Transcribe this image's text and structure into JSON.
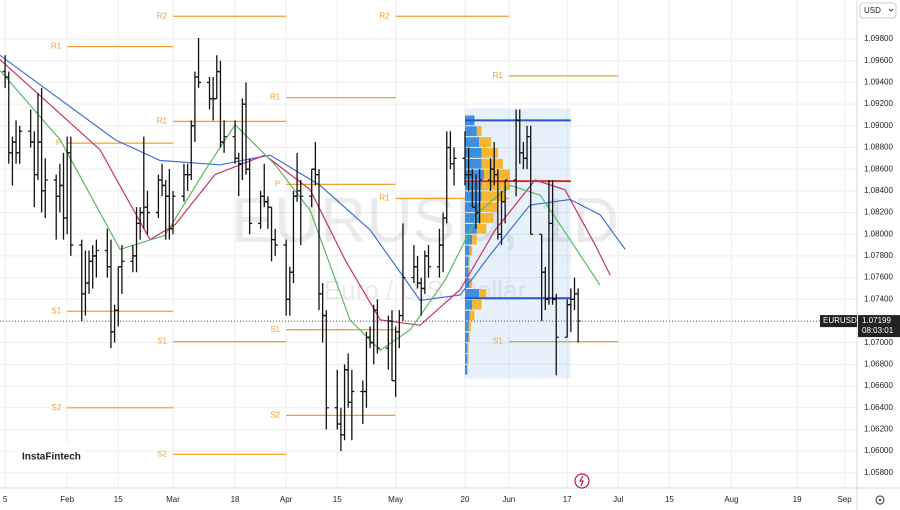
{
  "chart_data": {
    "type": "ohlc",
    "symbol_title": "EURUSD, 1D",
    "symbol_description": "Euro / U.S. Dollar",
    "currency": "USD",
    "brand": "InstaFintech",
    "last_price": {
      "symbol": "EURUSD",
      "value": 1.07199,
      "countdown": "08:03:01"
    },
    "xlim": [
      12.6,
      247.4
    ],
    "ylim": [
      1.0566,
      1.1016
    ],
    "xticks": [
      {
        "value": 14,
        "label": "5"
      },
      {
        "value": 31,
        "label": "Feb"
      },
      {
        "value": 45,
        "label": "15"
      },
      {
        "value": 60,
        "label": "Mar"
      },
      {
        "value": 77,
        "label": "18"
      },
      {
        "value": 91,
        "label": "Apr"
      },
      {
        "value": 105,
        "label": "15"
      },
      {
        "value": 121,
        "label": "May"
      },
      {
        "value": 140,
        "label": "20"
      },
      {
        "value": 152,
        "label": "Jun"
      },
      {
        "value": 168,
        "label": "17"
      },
      {
        "value": 182,
        "label": "Jul"
      },
      {
        "value": 196,
        "label": "15"
      },
      {
        "value": 213,
        "label": "Aug"
      },
      {
        "value": 231,
        "label": "19"
      },
      {
        "value": 244,
        "label": "Sep"
      }
    ],
    "yticks": [
      {
        "value": 1.058,
        "label": "1.05800"
      },
      {
        "value": 1.06,
        "label": "1.06000"
      },
      {
        "value": 1.062,
        "label": "1.06200"
      },
      {
        "value": 1.064,
        "label": "1.06400"
      },
      {
        "value": 1.066,
        "label": "1.06600"
      },
      {
        "value": 1.068,
        "label": "1.06800"
      },
      {
        "value": 1.07,
        "label": "1.07000"
      },
      {
        "value": 1.072,
        "label": "1.07200"
      },
      {
        "value": 1.074,
        "label": "1.07400"
      },
      {
        "value": 1.076,
        "label": "1.07600"
      },
      {
        "value": 1.078,
        "label": "1.07800"
      },
      {
        "value": 1.08,
        "label": "1.08000"
      },
      {
        "value": 1.082,
        "label": "1.08200"
      },
      {
        "value": 1.084,
        "label": "1.08400"
      },
      {
        "value": 1.086,
        "label": "1.08600"
      },
      {
        "value": 1.088,
        "label": "1.08800"
      },
      {
        "value": 1.09,
        "label": "1.09000"
      },
      {
        "value": 1.092,
        "label": "1.09200"
      },
      {
        "value": 1.094,
        "label": "1.09400"
      },
      {
        "value": 1.096,
        "label": "1.09600"
      },
      {
        "value": 1.098,
        "label": "1.09800"
      }
    ],
    "grid": true,
    "bar_color": "#111111",
    "x": [
      14,
      15,
      16,
      17,
      18,
      21,
      22,
      23,
      24,
      25,
      28,
      29,
      30,
      31,
      32,
      35,
      36,
      37,
      38,
      39,
      42,
      43,
      44,
      45,
      46,
      49,
      50,
      51,
      52,
      53,
      56,
      57,
      58,
      59,
      60,
      63,
      64,
      65,
      66,
      67,
      70,
      71,
      72,
      73,
      74,
      77,
      78,
      79,
      80,
      81,
      84,
      85,
      86,
      87,
      88,
      91,
      92,
      93,
      94,
      95,
      98,
      99,
      100,
      101,
      102,
      105,
      106,
      107,
      108,
      109,
      112,
      113,
      114,
      115,
      116,
      119,
      120,
      121,
      122,
      123,
      126,
      127,
      128,
      129,
      130,
      133,
      134,
      135,
      136,
      137,
      140,
      141,
      142,
      143,
      144,
      147,
      148,
      149,
      150,
      151,
      154,
      155,
      156,
      157,
      158,
      161,
      162,
      163,
      164,
      165,
      168,
      169,
      170,
      171
    ],
    "ohlc": [
      [
        1.095,
        1.0965,
        1.0935,
        1.0945
      ],
      [
        1.0945,
        1.095,
        1.0865,
        1.0875
      ],
      [
        1.0875,
        1.089,
        1.0845,
        1.0885
      ],
      [
        1.0885,
        1.0905,
        1.0865,
        1.0875
      ],
      [
        1.0875,
        1.09,
        1.0865,
        1.0895
      ],
      [
        1.0895,
        1.0915,
        1.088,
        1.0885
      ],
      [
        1.0885,
        1.0895,
        1.0825,
        1.0855
      ],
      [
        1.0855,
        1.093,
        1.085,
        1.0885
      ],
      [
        1.0885,
        1.0935,
        1.082,
        1.084
      ],
      [
        1.084,
        1.087,
        1.0815,
        1.085
      ],
      [
        1.085,
        1.0855,
        1.0795,
        1.0835
      ],
      [
        1.0835,
        1.0865,
        1.082,
        1.0845
      ],
      [
        1.0845,
        1.0875,
        1.0795,
        1.0815
      ],
      [
        1.0815,
        1.089,
        1.08,
        1.0875
      ],
      [
        1.0875,
        1.089,
        1.078,
        1.079
      ],
      [
        1.079,
        1.0795,
        1.072,
        1.0745
      ],
      [
        1.0745,
        1.0785,
        1.0725,
        1.0755
      ],
      [
        1.0755,
        1.0785,
        1.0745,
        1.0775
      ],
      [
        1.0775,
        1.079,
        1.075,
        1.078
      ],
      [
        1.078,
        1.0795,
        1.076,
        1.0785
      ],
      [
        1.0785,
        1.0805,
        1.076,
        1.077
      ],
      [
        1.077,
        1.0795,
        1.0695,
        1.071
      ],
      [
        1.071,
        1.0735,
        1.07,
        1.073
      ],
      [
        1.073,
        1.077,
        1.0715,
        1.077
      ],
      [
        1.077,
        1.079,
        1.0745,
        1.0775
      ],
      [
        1.0775,
        1.079,
        1.0765,
        1.078
      ],
      [
        1.078,
        1.0825,
        1.0765,
        1.081
      ],
      [
        1.081,
        1.0825,
        1.0795,
        1.082
      ],
      [
        1.082,
        1.089,
        1.0805,
        1.0825
      ],
      [
        1.0825,
        1.084,
        1.08,
        1.082
      ],
      [
        1.082,
        1.0855,
        1.0815,
        1.085
      ],
      [
        1.085,
        1.0865,
        1.0835,
        1.0845
      ],
      [
        1.0845,
        1.085,
        1.0795,
        1.0835
      ],
      [
        1.0835,
        1.086,
        1.0795,
        1.0805
      ],
      [
        1.0805,
        1.084,
        1.08,
        1.0835
      ],
      [
        1.0835,
        1.0865,
        1.083,
        1.0855
      ],
      [
        1.0855,
        1.0865,
        1.084,
        1.0855
      ],
      [
        1.0855,
        1.0905,
        1.085,
        1.09
      ],
      [
        1.09,
        1.095,
        1.0885,
        1.0945
      ],
      [
        1.0945,
        1.0981,
        1.0935,
        1.094
      ],
      [
        1.094,
        1.0945,
        1.0915,
        1.0925
      ],
      [
        1.0925,
        1.0945,
        1.0905,
        1.0925
      ],
      [
        1.0925,
        1.0965,
        1.0925,
        1.095
      ],
      [
        1.095,
        1.096,
        1.088,
        1.0885
      ],
      [
        1.0885,
        1.0905,
        1.0875,
        1.089
      ],
      [
        1.089,
        1.0905,
        1.0865,
        1.087
      ],
      [
        1.087,
        1.0875,
        1.0835,
        1.0865
      ],
      [
        1.0865,
        1.0925,
        1.085,
        1.092
      ],
      [
        1.092,
        1.094,
        1.0855,
        1.086
      ],
      [
        1.086,
        1.087,
        1.08,
        1.081
      ],
      [
        1.081,
        1.084,
        1.0805,
        1.0835
      ],
      [
        1.0835,
        1.0865,
        1.0825,
        1.083
      ],
      [
        1.083,
        1.0835,
        1.0805,
        1.0825
      ],
      [
        1.0825,
        1.0825,
        1.0775,
        1.0795
      ],
      [
        1.0795,
        1.0805,
        1.078,
        1.079
      ],
      [
        1.079,
        1.0795,
        1.0725,
        1.074
      ],
      [
        1.074,
        1.077,
        1.0725,
        1.0765
      ],
      [
        1.0765,
        1.084,
        1.0755,
        1.0835
      ],
      [
        1.0835,
        1.0875,
        1.083,
        1.084
      ],
      [
        1.084,
        1.085,
        1.079,
        1.0835
      ],
      [
        1.0835,
        1.086,
        1.0825,
        1.086
      ],
      [
        1.086,
        1.0885,
        1.0845,
        1.0855
      ],
      [
        1.0855,
        1.086,
        1.073,
        1.0745
      ],
      [
        1.0745,
        1.0755,
        1.07,
        1.0725
      ],
      [
        1.0725,
        1.073,
        1.062,
        1.064
      ],
      [
        1.064,
        1.0675,
        1.062,
        1.0625
      ],
      [
        1.0625,
        1.064,
        1.06,
        1.0615
      ],
      [
        1.0615,
        1.068,
        1.061,
        1.0675
      ],
      [
        1.0675,
        1.069,
        1.064,
        1.0645
      ],
      [
        1.0645,
        1.0675,
        1.061,
        1.0655
      ],
      [
        1.0655,
        1.0665,
        1.0625,
        1.0655
      ],
      [
        1.0655,
        1.071,
        1.064,
        1.0705
      ],
      [
        1.0705,
        1.0715,
        1.0695,
        1.07
      ],
      [
        1.07,
        1.0735,
        1.068,
        1.073
      ],
      [
        1.073,
        1.074,
        1.069,
        1.0695
      ],
      [
        1.0695,
        1.0725,
        1.0675,
        1.072
      ],
      [
        1.072,
        1.073,
        1.0665,
        1.0665
      ],
      [
        1.0665,
        1.0715,
        1.065,
        1.071
      ],
      [
        1.071,
        1.073,
        1.0695,
        1.0725
      ],
      [
        1.0725,
        1.081,
        1.072,
        1.076
      ],
      [
        1.076,
        1.079,
        1.0755,
        1.077
      ],
      [
        1.077,
        1.078,
        1.075,
        1.0755
      ],
      [
        1.0755,
        1.076,
        1.0725,
        1.075
      ],
      [
        1.075,
        1.0785,
        1.0745,
        1.078
      ],
      [
        1.078,
        1.079,
        1.076,
        1.077
      ],
      [
        1.077,
        1.0805,
        1.076,
        1.079
      ],
      [
        1.079,
        1.082,
        1.0765,
        1.0815
      ],
      [
        1.0815,
        1.0895,
        1.081,
        1.088
      ],
      [
        1.088,
        1.0895,
        1.086,
        1.0865
      ],
      [
        1.0865,
        1.088,
        1.0845,
        1.087
      ],
      [
        1.087,
        1.0895,
        1.0845,
        1.0855
      ],
      [
        1.0855,
        1.088,
        1.084,
        1.0855
      ],
      [
        1.0855,
        1.086,
        1.0825,
        1.0825
      ],
      [
        1.0825,
        1.0855,
        1.0805,
        1.082
      ],
      [
        1.082,
        1.086,
        1.081,
        1.085
      ],
      [
        1.085,
        1.087,
        1.084,
        1.086
      ],
      [
        1.086,
        1.0885,
        1.0845,
        1.0855
      ],
      [
        1.0855,
        1.086,
        1.0795,
        1.08
      ],
      [
        1.08,
        1.084,
        1.079,
        1.083
      ],
      [
        1.083,
        1.085,
        1.081,
        1.085
      ],
      [
        1.085,
        1.0915,
        1.0835,
        1.0905
      ],
      [
        1.0905,
        1.0915,
        1.0865,
        1.0875
      ],
      [
        1.0875,
        1.0885,
        1.086,
        1.087
      ],
      [
        1.087,
        1.09,
        1.086,
        1.089
      ],
      [
        1.089,
        1.09,
        1.08,
        1.08
      ],
      [
        1.08,
        1.08,
        1.072,
        1.0765
      ],
      [
        1.0765,
        1.077,
        1.073,
        1.074
      ],
      [
        1.074,
        1.085,
        1.0735,
        1.081
      ],
      [
        1.081,
        1.085,
        1.0735,
        1.074
      ],
      [
        1.074,
        1.0745,
        1.067,
        1.0705
      ],
      [
        1.0705,
        1.074,
        1.0705,
        1.0735
      ],
      [
        1.0735,
        1.075,
        1.071,
        1.074
      ],
      [
        1.074,
        1.076,
        1.073,
        1.0745
      ],
      [
        1.0745,
        1.075,
        1.07,
        1.072
      ]
    ],
    "lines": [
      {
        "color": "#3f6fd8",
        "x": [
          12.6,
          44.2,
          56.5,
          72.9,
          86.6,
          100.3,
          114.0,
          127.7,
          138.7,
          146.9,
          157.8,
          168.8,
          177.0,
          183.9
        ],
        "values": [
          1.0965,
          1.0887,
          1.0868,
          1.0864,
          1.0873,
          1.0845,
          1.0804,
          1.0739,
          1.0744,
          1.0781,
          1.0827,
          1.0832,
          1.0818,
          1.0786
        ]
      },
      {
        "color": "#c8336a",
        "x": [
          12.6,
          40.0,
          53.7,
          60.6,
          71.5,
          85.2,
          97.6,
          107.2,
          116.8,
          127.7,
          138.7,
          148.3,
          159.2,
          167.4,
          175.7,
          179.8
        ],
        "values": [
          1.0961,
          1.0878,
          1.0795,
          1.0809,
          1.0855,
          1.0873,
          1.0841,
          1.0776,
          1.0721,
          1.0716,
          1.0749,
          1.0804,
          1.085,
          1.0841,
          1.079,
          1.0762
        ]
      },
      {
        "color": "#5cb860",
        "x": [
          12.6,
          29.1,
          45.5,
          57.8,
          68.8,
          77.0,
          88.0,
          97.6,
          108.5,
          116.8,
          125.0,
          134.6,
          144.2,
          152.4,
          160.6,
          168.8,
          177.0
        ],
        "values": [
          1.0951,
          1.0887,
          1.0786,
          1.0799,
          1.0859,
          1.0901,
          1.0864,
          1.0822,
          1.0721,
          1.0693,
          1.0712,
          1.0758,
          1.0822,
          1.0845,
          1.0836,
          1.0795,
          1.0753
        ]
      }
    ],
    "pivot_color": "#f0a030",
    "pivots": [
      {
        "label": "R1",
        "value": 1.0973,
        "x": [
          31,
          60
        ]
      },
      {
        "label": "P",
        "value": 1.0884,
        "x": [
          31,
          60
        ]
      },
      {
        "label": "S1",
        "value": 1.0729,
        "x": [
          31,
          60
        ]
      },
      {
        "label": "S2",
        "value": 1.064,
        "x": [
          31,
          60
        ]
      },
      {
        "label": "R2",
        "value": 1.1001,
        "x": [
          60,
          91
        ]
      },
      {
        "label": "R1",
        "value": 1.0904,
        "x": [
          60,
          91
        ]
      },
      {
        "label": "S1",
        "value": 1.0701,
        "x": [
          60,
          91
        ]
      },
      {
        "label": "S2",
        "value": 1.0597,
        "x": [
          60,
          91
        ]
      },
      {
        "label": "R1",
        "value": 1.0926,
        "x": [
          91,
          121
        ]
      },
      {
        "label": "P",
        "value": 1.0846,
        "x": [
          91,
          121
        ]
      },
      {
        "label": "S1",
        "value": 1.0712,
        "x": [
          91,
          121
        ]
      },
      {
        "label": "S2",
        "value": 1.0633,
        "x": [
          91,
          121
        ]
      },
      {
        "label": "R2",
        "value": 1.1001,
        "x": [
          121,
          152
        ]
      },
      {
        "label": "R1",
        "value": 1.0833,
        "x": [
          121,
          152
        ]
      },
      {
        "label": "R1",
        "value": 1.0946,
        "x": [
          152,
          182
        ]
      },
      {
        "label": "S1",
        "value": 1.0701,
        "x": [
          152,
          182
        ]
      }
    ],
    "value_area": {
      "x": [
        140,
        169
      ],
      "top": 1.0916,
      "bottom": 1.0667,
      "high": 1.0905,
      "poc": 1.0849,
      "low": 1.0741
    },
    "profile": {
      "prices": [
        1.0905,
        1.0895,
        1.0885,
        1.0875,
        1.0865,
        1.0855,
        1.0845,
        1.0835,
        1.0825,
        1.0815,
        1.0805,
        1.0795,
        1.0785,
        1.0775,
        1.0765,
        1.0755,
        1.0745,
        1.0735,
        1.0725,
        1.0715,
        1.0705,
        1.0695,
        1.0685,
        1.0675
      ],
      "blue": [
        8,
        10,
        12,
        14,
        14,
        16,
        14,
        14,
        12,
        12,
        10,
        6,
        4,
        3,
        3,
        4,
        12,
        6,
        4,
        3,
        3,
        2,
        2,
        2
      ],
      "orange": [
        0,
        4,
        10,
        14,
        18,
        22,
        24,
        20,
        16,
        12,
        8,
        4,
        2,
        1,
        1,
        2,
        6,
        8,
        4,
        2,
        1,
        1,
        1,
        0
      ]
    }
  }
}
